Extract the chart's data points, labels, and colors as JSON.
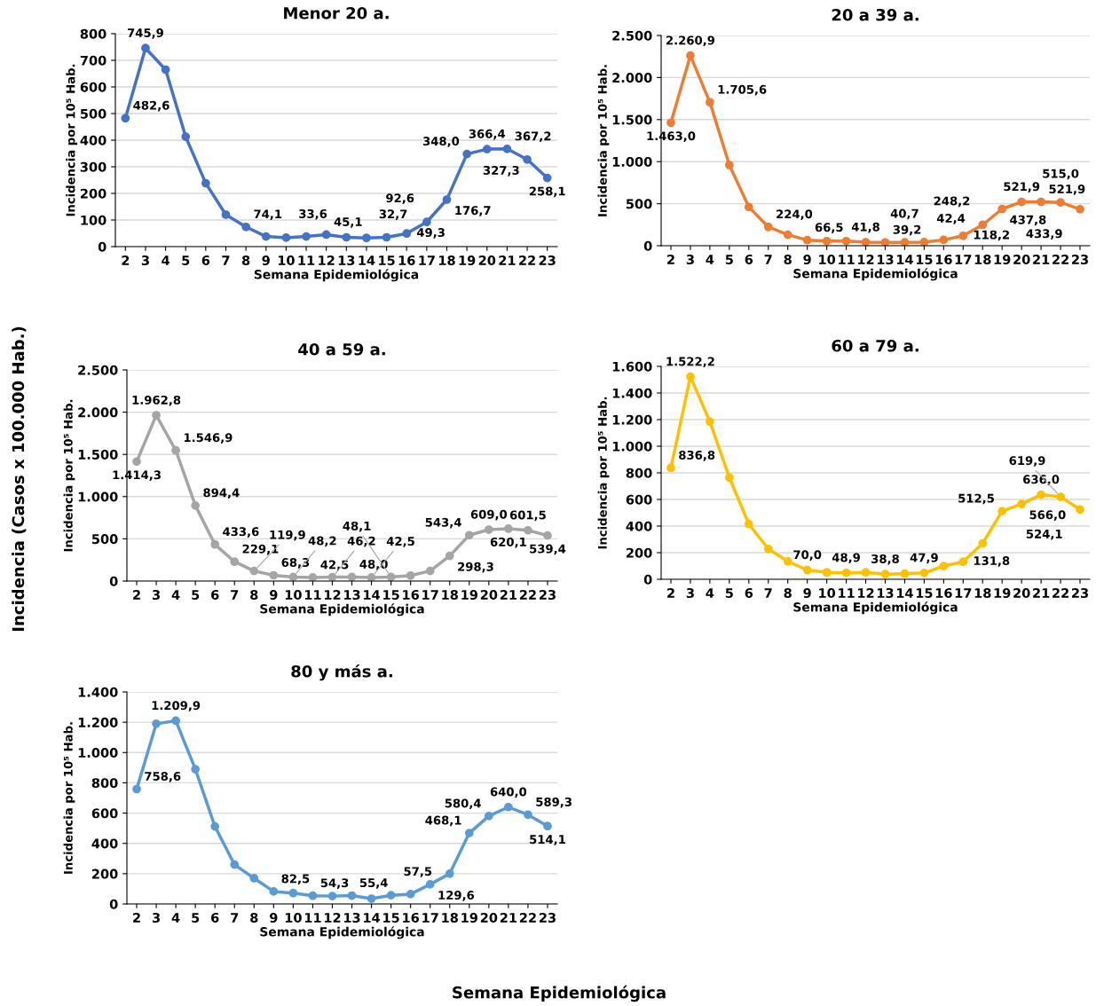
{
  "chart_data": [
    {
      "type": "line",
      "title": "Menor 20 a.",
      "xlabel": "Semana Epidemiológica",
      "ylabel": "Incidencia por 10⁵ Hab.",
      "categories": [
        "2",
        "3",
        "4",
        "5",
        "6",
        "7",
        "8",
        "9",
        "10",
        "11",
        "12",
        "13",
        "14",
        "15",
        "16",
        "17",
        "18",
        "19",
        "20",
        "21",
        "22",
        "23"
      ],
      "series": [
        {
          "color": "#4472c4",
          "values": [
            482.6,
            745.9,
            665,
            413,
            238,
            120,
            74.1,
            38,
            33.6,
            38,
            45.1,
            35,
            32.7,
            35,
            49.3,
            92.6,
            176.7,
            348.0,
            366.4,
            367.2,
            327.3,
            258.1
          ],
          "value_labels": [
            "482,6",
            "745,9",
            null,
            null,
            null,
            null,
            "74,1",
            null,
            "33,6",
            null,
            "45,1",
            null,
            "32,7",
            null,
            "49,3",
            "92,6",
            "176,7",
            "348,0",
            "366,4",
            "367,2",
            "327,3",
            "258,1"
          ]
        }
      ],
      "ylim": [
        0,
        800
      ],
      "yticks": [
        0,
        100,
        200,
        300,
        400,
        500,
        600,
        700,
        800
      ],
      "grid": "y",
      "marker": "circle",
      "line_style": "solid"
    },
    {
      "type": "line",
      "title": "20 a 39 a.",
      "xlabel": "Semana Epidemiológica",
      "ylabel": "Incidencia por 10⁵ Hab.",
      "categories": [
        "2",
        "3",
        "4",
        "5",
        "6",
        "7",
        "8",
        "9",
        "10",
        "11",
        "12",
        "13",
        "14",
        "15",
        "16",
        "17",
        "18",
        "19",
        "20",
        "21",
        "22",
        "23"
      ],
      "series": [
        {
          "color": "#ed7d31",
          "values": [
            1463.0,
            2260.9,
            1705.6,
            960,
            460,
            224.0,
            130,
            66.5,
            55,
            55,
            41.8,
            39.2,
            40.7,
            42.4,
            70,
            118.2,
            248.2,
            437.8,
            521.9,
            521.9,
            515.0,
            433.9
          ],
          "value_labels": [
            "1.463,0",
            "2.260,9",
            "1.705,6",
            null,
            null,
            "224,0",
            null,
            "66,5",
            null,
            null,
            "41,8",
            "39,2",
            "40,7",
            "42,4",
            null,
            "118,2",
            "248,2",
            "437,8",
            "521,9",
            "521,9",
            "515,0",
            "433,9"
          ]
        }
      ],
      "ylim": [
        0,
        2500
      ],
      "yticks": [
        0,
        500,
        {
          "value": 1000,
          "label": "1.000"
        },
        {
          "value": 1500,
          "label": "1.500"
        },
        {
          "value": 2000,
          "label": "2.000"
        },
        {
          "value": 2500,
          "label": "2.500"
        }
      ],
      "grid": "y",
      "marker": "circle",
      "line_style": "solid"
    },
    {
      "type": "line",
      "title": "40 a 59 a.",
      "xlabel": "Semana Epidemiológica",
      "ylabel": "Incidencia por 10⁵ Hab.",
      "categories": [
        "2",
        "3",
        "4",
        "5",
        "6",
        "7",
        "8",
        "9",
        "10",
        "11",
        "12",
        "13",
        "14",
        "15",
        "16",
        "17",
        "18",
        "19",
        "20",
        "21",
        "22",
        "23"
      ],
      "series": [
        {
          "color": "#a5a5a5",
          "values": [
            1414.3,
            1962.8,
            1546.9,
            894.4,
            433.6,
            229.1,
            119.9,
            68.3,
            48.2,
            42.5,
            46.2,
            48.0,
            42.5,
            48.1,
            65,
            120,
            298.3,
            543.4,
            609.0,
            620.1,
            601.5,
            539.4
          ],
          "value_labels": [
            "1.414,3",
            "1.962,8",
            "1.546,9",
            "894,4",
            "433,6",
            "229,1",
            "119,9",
            "68,3",
            "48,2",
            "42,5",
            "46,2",
            "48,0",
            "42,5",
            "48,1",
            null,
            null,
            "298,3",
            "543,4",
            "609,0",
            "620,1",
            "601,5",
            "539,4"
          ]
        }
      ],
      "ylim": [
        0,
        2500
      ],
      "yticks": [
        0,
        500,
        {
          "value": 1000,
          "label": "1.000"
        },
        {
          "value": 1500,
          "label": "1.500"
        },
        {
          "value": 2000,
          "label": "2.000"
        },
        {
          "value": 2500,
          "label": "2.500"
        }
      ],
      "grid": "y",
      "marker": "circle",
      "line_style": "solid"
    },
    {
      "type": "line",
      "title": "60 a 79 a.",
      "xlabel": "Semana Epidemiológica",
      "ylabel": "Incidencia por 10⁵ Hab.",
      "categories": [
        "2",
        "3",
        "4",
        "5",
        "6",
        "7",
        "8",
        "9",
        "10",
        "11",
        "12",
        "13",
        "14",
        "15",
        "16",
        "17",
        "18",
        "19",
        "20",
        "21",
        "22",
        "23"
      ],
      "series": [
        {
          "color": "#ffc000",
          "values": [
            836.8,
            1522.2,
            1185,
            765,
            415,
            228,
            135,
            70.0,
            52,
            48.9,
            52,
            38.8,
            42,
            47.9,
            100,
            131.8,
            270,
            512.5,
            566.0,
            636.0,
            619.9,
            524.1
          ],
          "value_labels": [
            "836,8",
            "1.522,2",
            null,
            null,
            null,
            null,
            null,
            "70,0",
            null,
            "48,9",
            null,
            "38,8",
            null,
            "47,9",
            null,
            "131,8",
            null,
            "512,5",
            "566,0",
            "636,0",
            "619,9",
            "524,1"
          ]
        }
      ],
      "ylim": [
        0,
        1600
      ],
      "yticks": [
        0,
        200,
        400,
        600,
        800,
        {
          "value": 1000,
          "label": "1.000"
        },
        {
          "value": 1200,
          "label": "1.200"
        },
        {
          "value": 1400,
          "label": "1.400"
        },
        {
          "value": 1600,
          "label": "1.600"
        }
      ],
      "grid": "y",
      "marker": "circle",
      "line_style": "solid"
    },
    {
      "type": "line",
      "title": "80 y más a.",
      "xlabel": "Semana Epidemiológica",
      "ylabel": "Incidencia por 10⁵ Hab.",
      "categories": [
        "2",
        "3",
        "4",
        "5",
        "6",
        "7",
        "8",
        "9",
        "10",
        "11",
        "12",
        "13",
        "14",
        "15",
        "16",
        "17",
        "18",
        "19",
        "20",
        "21",
        "22",
        "23"
      ],
      "series": [
        {
          "color": "#5b9bd5",
          "values": [
            758.6,
            1190,
            1209.9,
            890,
            512,
            260,
            170,
            82.5,
            72,
            54.3,
            52,
            55.4,
            35,
            57.5,
            65,
            129.6,
            200,
            468.1,
            580.4,
            640.0,
            589.3,
            514.1
          ],
          "value_labels": [
            "758,6",
            null,
            "1.209,9",
            null,
            null,
            null,
            null,
            "82,5",
            null,
            "54,3",
            null,
            "55,4",
            null,
            "57,5",
            null,
            "129,6",
            null,
            "468,1",
            "580,4",
            "640,0",
            "589,3",
            "514,1"
          ]
        }
      ],
      "ylim": [
        0,
        1400
      ],
      "yticks": [
        0,
        200,
        400,
        600,
        800,
        {
          "value": 1000,
          "label": "1.000"
        },
        {
          "value": 1200,
          "label": "1.200"
        },
        {
          "value": 1400,
          "label": "1.400"
        }
      ],
      "grid": "y",
      "marker": "circle",
      "line_style": "solid",
      "annotations": [
        "Incidencia (Casos x 100.000 Hab.)",
        "Semana Epidemiológica"
      ]
    }
  ]
}
